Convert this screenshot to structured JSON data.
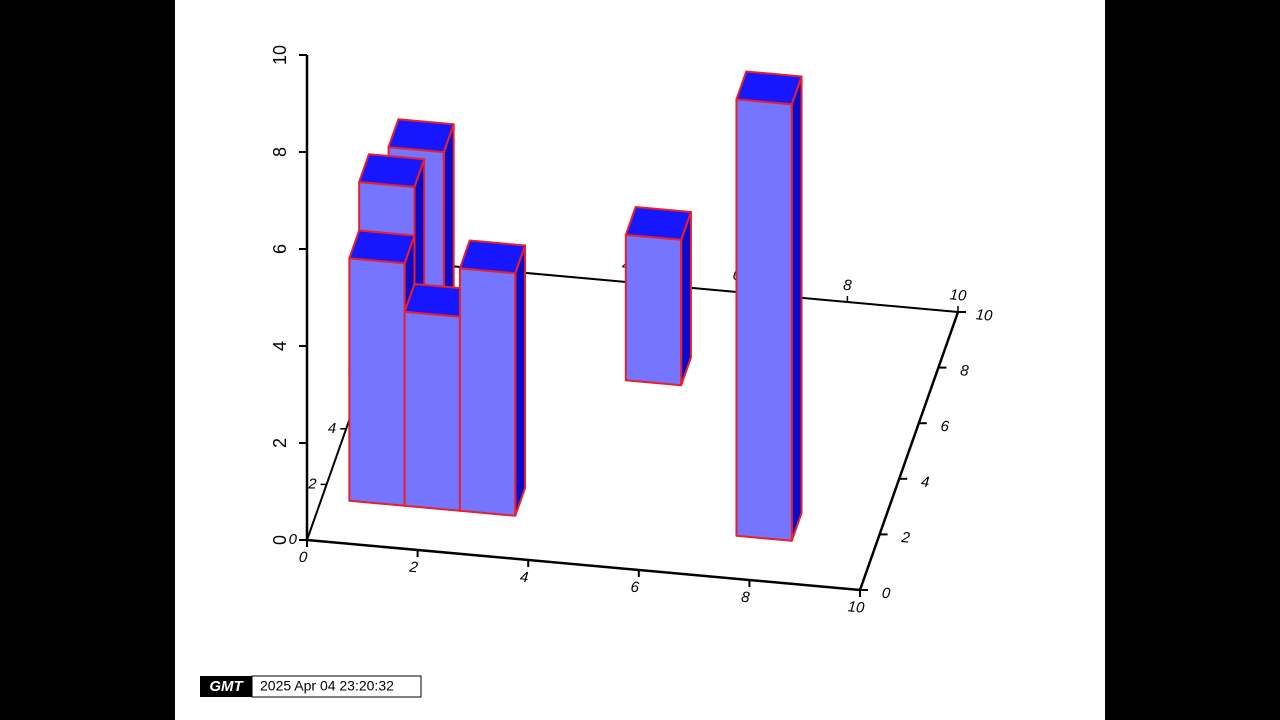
{
  "chart_data": {
    "type": "bar3d",
    "x": [
      1,
      2,
      3,
      1,
      1,
      6,
      8
    ],
    "y": [
      2,
      2,
      2,
      3,
      6,
      2,
      2
    ],
    "base": [
      0,
      0,
      0,
      0,
      0,
      3,
      0
    ],
    "values": [
      5,
      4,
      5,
      6,
      5,
      6,
      9
    ],
    "xlim": [
      0,
      10
    ],
    "ylim": [
      0,
      10
    ],
    "zlim": [
      0,
      10
    ],
    "xticks": [
      0,
      2,
      4,
      6,
      8,
      10
    ],
    "yticks": [
      0,
      2,
      4,
      6,
      8,
      10
    ],
    "zticks": [
      0,
      2,
      4,
      6,
      8,
      10
    ],
    "color": "#7575ff",
    "top_color": "#1616ff",
    "side_color": "#0a0acc",
    "edge_color": "#e8202a"
  },
  "timestamp": {
    "logo": "GMT",
    "text": "2025 Apr 04 23:20:32"
  }
}
